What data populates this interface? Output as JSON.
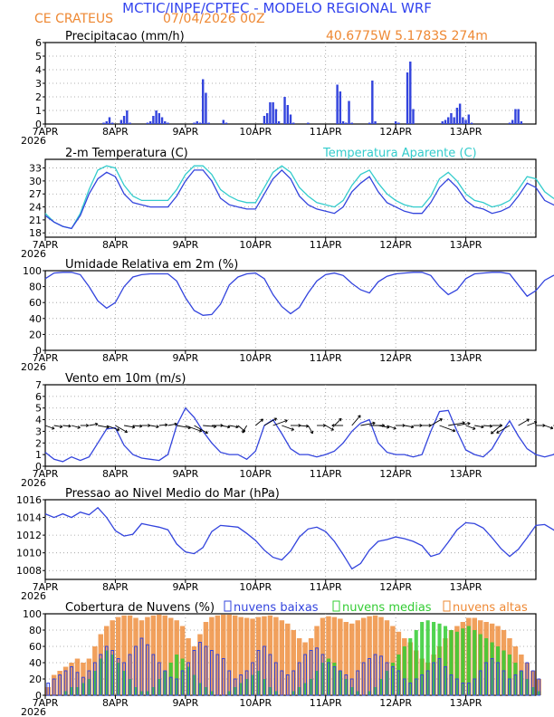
{
  "header": {
    "title": "MCTIC/INPE/CPTEC - MODELO REGIONAL WRF",
    "station": "CE CRATEUS",
    "run": "07/04/2026 00Z",
    "location": "40.6775W 5.1783S 274m"
  },
  "colors": {
    "title": "#3344ee",
    "header_orange": "#ee8833",
    "temp": "#3344dd",
    "temp_apparent": "#33cccc",
    "bars": "#3344dd",
    "cloud_low": "#3344dd",
    "cloud_mid": "#33cc33",
    "cloud_high": "#ee8833",
    "grid": "#999999"
  },
  "x_axis": {
    "tick_labels": [
      "7APR",
      "8APR",
      "9APR",
      "10APR",
      "11APR",
      "12APR",
      "13APR"
    ],
    "year": "2026",
    "hours_total": 168
  },
  "chart_data": [
    {
      "type": "bar",
      "title": "Precipitacao (mm/h)",
      "ylim": [
        0,
        6
      ],
      "yticks": [
        0,
        1,
        2,
        3,
        4,
        5,
        6
      ],
      "step_hours": 1,
      "values": [
        0,
        0,
        0,
        0,
        0,
        0,
        0,
        0,
        0,
        0,
        0,
        0,
        0,
        0,
        0,
        0,
        0,
        0,
        0,
        0,
        0.1,
        0.2,
        0.5,
        0.1,
        0,
        0,
        0.3,
        0.6,
        1,
        0.1,
        0,
        0,
        0,
        0,
        0,
        0.1,
        0.2,
        0.6,
        1,
        0.8,
        0.5,
        0.2,
        0.1,
        0,
        0,
        0,
        0,
        0,
        0,
        0,
        0,
        0.1,
        0.2,
        0.1,
        3.3,
        2.3,
        0.1,
        0,
        0,
        0,
        0,
        0.3,
        0.1,
        0,
        0,
        0,
        0,
        0,
        0,
        0,
        0,
        0,
        0,
        0,
        0,
        0.6,
        0.8,
        1.6,
        1.6,
        1.1,
        0.2,
        0,
        2,
        1.4,
        0.7,
        0.1,
        0,
        0,
        0,
        0,
        0.1,
        0,
        0,
        0,
        0,
        0,
        0,
        0,
        0,
        0,
        2.9,
        2.4,
        0.2,
        0.1,
        1.7,
        0.1,
        0,
        0,
        0,
        0,
        0,
        0.1,
        3.2,
        0.2,
        0,
        0,
        0,
        0,
        0,
        0,
        0.2,
        0.1,
        0,
        0,
        3.8,
        4.6,
        1.1,
        0,
        0,
        0,
        0,
        0,
        0,
        0,
        0,
        0,
        0.2,
        0.3,
        0.5,
        0.8,
        0.5,
        1.2,
        1.5,
        0.5,
        0.3,
        0.7,
        0.1,
        0,
        0,
        0,
        0,
        0,
        0,
        0,
        0,
        0,
        0,
        0,
        0,
        0.1,
        0.3,
        1.1,
        1.1,
        0.2
      ]
    },
    {
      "type": "line",
      "title": "2-m Temperatura (C)",
      "legend": "Temperatura Aparente (C)",
      "ylim": [
        17,
        35
      ],
      "yticks": [
        18,
        21,
        24,
        27,
        30,
        33
      ],
      "step_hours": 3,
      "series": [
        {
          "name": "temp",
          "values": [
            22,
            20.5,
            19.5,
            19,
            22,
            27,
            30.5,
            32,
            31,
            27,
            25,
            24.5,
            24,
            24,
            24,
            26.5,
            30,
            32.5,
            32.5,
            30,
            26,
            24.5,
            24,
            23.5,
            23.5,
            27,
            30.5,
            32.5,
            30.5,
            26.5,
            24.5,
            23.5,
            23,
            22.5,
            24,
            27.5,
            29.5,
            31,
            27.5,
            25,
            24,
            23,
            22.5,
            22.5,
            25,
            28.5,
            30.5,
            28.5,
            25.5,
            24,
            23.5,
            22.5,
            23,
            24,
            26.5,
            29.5,
            28.5,
            25.5,
            24.5,
            23.5,
            22.5,
            22.5,
            23,
            24,
            23.5,
            22.5,
            22,
            21.5,
            21.5,
            21.5,
            23.5,
            27,
            29,
            27,
            25,
            24,
            24.5
          ]
        },
        {
          "name": "Temperatura Aparente (C)",
          "values": [
            22.5,
            20.5,
            19.5,
            19,
            22.5,
            28,
            32.5,
            33.5,
            33,
            29,
            26.5,
            25.5,
            25.5,
            25.5,
            25.5,
            28,
            31.5,
            33.5,
            33.5,
            31.5,
            28,
            26.5,
            25.5,
            25,
            25,
            28.5,
            32,
            33.5,
            32,
            28.5,
            26.5,
            25,
            24.5,
            24,
            25.5,
            29,
            31.5,
            32.5,
            29.5,
            27,
            25.5,
            24.5,
            24,
            24,
            26.5,
            30.5,
            32,
            30,
            27,
            25.5,
            25,
            24,
            24.5,
            25.5,
            28,
            31,
            30.5,
            27.5,
            26,
            25,
            24,
            24,
            24.5,
            25.5,
            26,
            24.5,
            23.5,
            23,
            22.5,
            22.5,
            25,
            28.5,
            31.5,
            29,
            27,
            26.5,
            26
          ]
        }
      ]
    },
    {
      "type": "line",
      "title": "Umidade Relativa em 2m (%)",
      "ylim": [
        0,
        100
      ],
      "yticks": [
        0,
        20,
        40,
        60,
        80,
        100
      ],
      "step_hours": 3,
      "values": [
        90,
        97,
        98,
        98,
        95,
        80,
        62,
        53,
        60,
        80,
        92,
        95,
        96,
        96,
        96,
        87,
        66,
        50,
        44,
        45,
        58,
        82,
        92,
        96,
        97,
        90,
        70,
        55,
        46,
        54,
        72,
        87,
        95,
        97,
        94,
        84,
        76,
        72,
        86,
        93,
        96,
        97,
        98,
        98,
        94,
        80,
        70,
        76,
        90,
        96,
        97,
        98,
        98,
        96,
        82,
        68,
        75,
        88,
        94,
        96,
        97,
        98,
        98,
        97,
        95,
        92,
        96,
        98,
        99,
        99,
        99,
        94,
        78,
        68,
        62,
        76,
        92
      ]
    },
    {
      "type": "line",
      "title": "Vento em 10m (m/s)",
      "ylim": [
        0,
        7
      ],
      "yticks": [
        0,
        1,
        2,
        3,
        4,
        5,
        6,
        7
      ],
      "step_hours": 3,
      "values": [
        1.2,
        0.6,
        0.4,
        0.8,
        0.5,
        0.8,
        2,
        3.2,
        3.3,
        1.8,
        1,
        0.7,
        0.6,
        0.5,
        1,
        3.5,
        5,
        4.2,
        3,
        2,
        1.2,
        1,
        1,
        0.6,
        1.3,
        3.5,
        4,
        2.8,
        1.5,
        1,
        1,
        0.8,
        1,
        1.3,
        2,
        3,
        3.7,
        4,
        2,
        1.2,
        1,
        1,
        0.8,
        1,
        3,
        4.7,
        4.8,
        3,
        1.4,
        1,
        0.8,
        1.5,
        2.8,
        3.9,
        2.6,
        1.5,
        1,
        0.8,
        1,
        1.6,
        2.7,
        3.5,
        4.2,
        2,
        1.1,
        0.9,
        0.6,
        0.5,
        0.4,
        0.7,
        0.6,
        1.4,
        2.2,
        3.4,
        2.5,
        1.6,
        1
      ],
      "arrows_dir_deg": [
        110,
        100,
        95,
        105,
        90,
        80,
        100,
        110,
        120,
        100,
        95,
        90,
        100,
        85,
        80,
        100,
        110,
        120,
        95,
        90,
        100,
        100,
        130,
        210,
        50,
        60,
        70,
        110,
        90,
        95,
        150,
        90,
        120,
        45,
        270,
        40,
        80,
        90,
        100,
        110,
        90,
        100,
        90,
        90,
        60,
        110,
        80,
        80,
        110,
        100,
        95,
        90,
        230,
        240,
        60,
        70,
        90,
        110,
        100,
        80,
        200,
        250,
        210,
        60,
        80,
        110,
        100,
        95,
        90,
        90,
        100,
        95,
        100,
        210,
        230,
        60,
        90
      ]
    },
    {
      "type": "line",
      "title": "Pressao ao Nivel Medio do Mar (hPa)",
      "ylim": [
        1007,
        1016
      ],
      "yticks": [
        1008,
        1010,
        1012,
        1014,
        1016
      ],
      "step_hours": 3,
      "values": [
        1014.4,
        1014,
        1014.4,
        1014,
        1014.6,
        1014.3,
        1015.1,
        1014,
        1012.5,
        1011.9,
        1012.1,
        1013.3,
        1013.1,
        1012.9,
        1012.6,
        1011,
        1010.1,
        1009.9,
        1010.6,
        1012.4,
        1013.1,
        1013,
        1012.9,
        1012.2,
        1011.4,
        1010.3,
        1009.5,
        1009.2,
        1010.2,
        1011.8,
        1012.7,
        1012.9,
        1012.4,
        1011.3,
        1009.8,
        1008.2,
        1008.8,
        1010.3,
        1011.3,
        1011.5,
        1011.8,
        1011.6,
        1011.3,
        1010.8,
        1009.6,
        1009.9,
        1011.2,
        1012.6,
        1013.4,
        1013.3,
        1012.8,
        1011.7,
        1010.5,
        1009.6,
        1010.4,
        1011.7,
        1013.1,
        1013.2,
        1012.6,
        1011.8,
        1010.6,
        1010.3,
        1010.5,
        1012,
        1013.4,
        1013.2,
        1012.7,
        1011.6,
        1011.2,
        1010.4,
        1009.6,
        1008.5,
        1008.5,
        1009.4,
        1010.7
      ]
    },
    {
      "type": "bar",
      "title": "Cobertura de Nuvens (%)",
      "ylim": [
        0,
        100
      ],
      "yticks": [
        0,
        20,
        40,
        60,
        80,
        100
      ],
      "step_hours": 2,
      "series": [
        {
          "name": "nuvens baixas",
          "values": [
            15,
            20,
            25,
            30,
            35,
            28,
            22,
            30,
            40,
            50,
            60,
            55,
            45,
            40,
            50,
            60,
            70,
            62,
            50,
            40,
            30,
            22,
            20,
            30,
            40,
            55,
            65,
            60,
            55,
            50,
            45,
            30,
            20,
            25,
            30,
            40,
            55,
            60,
            50,
            40,
            30,
            25,
            30,
            40,
            50,
            55,
            58,
            50,
            40,
            35,
            30,
            25,
            20,
            30,
            40,
            45,
            50,
            48,
            40,
            35,
            30,
            20,
            15,
            20,
            25,
            30,
            40,
            45,
            35,
            25,
            20,
            15,
            15,
            20,
            30,
            40,
            45,
            40,
            30,
            20,
            25,
            30,
            40,
            30,
            20
          ]
        },
        {
          "name": "nuvens medias",
          "values": [
            0,
            0,
            0,
            5,
            10,
            10,
            15,
            20,
            30,
            45,
            55,
            50,
            40,
            30,
            20,
            10,
            5,
            5,
            10,
            20,
            30,
            40,
            50,
            45,
            35,
            25,
            15,
            10,
            5,
            0,
            0,
            5,
            10,
            15,
            20,
            25,
            30,
            20,
            10,
            5,
            0,
            0,
            5,
            10,
            15,
            20,
            30,
            40,
            45,
            40,
            30,
            20,
            10,
            5,
            0,
            5,
            10,
            20,
            30,
            40,
            50,
            60,
            70,
            80,
            90,
            92,
            90,
            88,
            85,
            80,
            78,
            82,
            85,
            80,
            75,
            70,
            65,
            60,
            55,
            50,
            40,
            30,
            20,
            10,
            5
          ]
        },
        {
          "name": "nuvens altas",
          "values": [
            10,
            25,
            30,
            35,
            40,
            45,
            40,
            45,
            60,
            75,
            85,
            92,
            96,
            98,
            98,
            95,
            92,
            96,
            98,
            99,
            98,
            95,
            92,
            85,
            70,
            60,
            75,
            90,
            96,
            98,
            99,
            99,
            98,
            96,
            95,
            94,
            96,
            97,
            98,
            96,
            92,
            88,
            80,
            70,
            65,
            70,
            85,
            95,
            97,
            96,
            94,
            90,
            88,
            92,
            95,
            97,
            98,
            96,
            92,
            85,
            78,
            70,
            65,
            55,
            45,
            40,
            50,
            60,
            70,
            80,
            85,
            90,
            95,
            95,
            92,
            90,
            88,
            85,
            80,
            70,
            60,
            50,
            40,
            30,
            20
          ]
        }
      ]
    }
  ]
}
